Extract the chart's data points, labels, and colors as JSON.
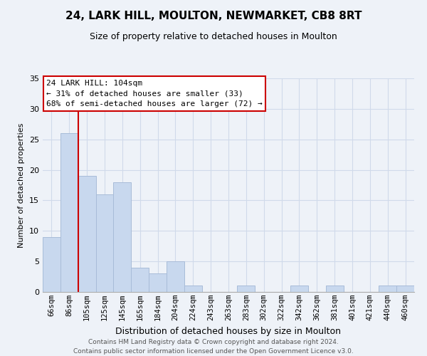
{
  "title": "24, LARK HILL, MOULTON, NEWMARKET, CB8 8RT",
  "subtitle": "Size of property relative to detached houses in Moulton",
  "xlabel": "Distribution of detached houses by size in Moulton",
  "ylabel": "Number of detached properties",
  "bar_labels": [
    "66sqm",
    "86sqm",
    "105sqm",
    "125sqm",
    "145sqm",
    "165sqm",
    "184sqm",
    "204sqm",
    "224sqm",
    "243sqm",
    "263sqm",
    "283sqm",
    "302sqm",
    "322sqm",
    "342sqm",
    "362sqm",
    "381sqm",
    "401sqm",
    "421sqm",
    "440sqm",
    "460sqm"
  ],
  "bar_values": [
    9,
    26,
    19,
    16,
    18,
    4,
    3,
    5,
    1,
    0,
    0,
    1,
    0,
    0,
    1,
    0,
    1,
    0,
    0,
    1,
    1
  ],
  "bar_color": "#c8d8ee",
  "bar_edge_color": "#a8bcd8",
  "highlight_color": "#cc0000",
  "ylim": [
    0,
    35
  ],
  "yticks": [
    0,
    5,
    10,
    15,
    20,
    25,
    30,
    35
  ],
  "annotation_title": "24 LARK HILL: 104sqm",
  "annotation_line1": "← 31% of detached houses are smaller (33)",
  "annotation_line2": "68% of semi-detached houses are larger (72) →",
  "annotation_box_color": "#ffffff",
  "annotation_box_edge": "#cc0000",
  "footer_line1": "Contains HM Land Registry data © Crown copyright and database right 2024.",
  "footer_line2": "Contains public sector information licensed under the Open Government Licence v3.0.",
  "background_color": "#eef2f8",
  "grid_color": "#d0daea",
  "title_fontsize": 11,
  "subtitle_fontsize": 9,
  "ylabel_fontsize": 8,
  "xlabel_fontsize": 9,
  "tick_fontsize": 7.5,
  "footer_fontsize": 6.5
}
